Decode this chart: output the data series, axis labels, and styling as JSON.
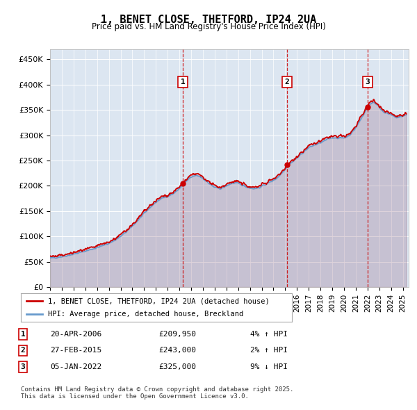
{
  "title": "1, BENET CLOSE, THETFORD, IP24 2UA",
  "subtitle": "Price paid vs. HM Land Registry's House Price Index (HPI)",
  "ylabel_ticks": [
    "£0",
    "£50K",
    "£100K",
    "£150K",
    "£200K",
    "£250K",
    "£300K",
    "£350K",
    "£400K",
    "£450K"
  ],
  "ytick_values": [
    0,
    50000,
    100000,
    150000,
    200000,
    250000,
    300000,
    350000,
    400000,
    450000
  ],
  "ylim": [
    0,
    470000
  ],
  "xlim_start": 1995.0,
  "xlim_end": 2025.5,
  "background_color": "#dce6f1",
  "plot_bg_color": "#dce6f1",
  "line_color_price": "#cc0000",
  "line_color_hpi": "#6699cc",
  "sale_marker_color": "#cc0000",
  "vline_color": "#cc0000",
  "annotation_box_color": "#cc0000",
  "sales": [
    {
      "label": "1",
      "date_x": 2006.3,
      "price": 209950,
      "text": "20-APR-2006",
      "amount": "£209,950",
      "pct": "4% ↑ HPI"
    },
    {
      "label": "2",
      "date_x": 2015.16,
      "price": 243000,
      "text": "27-FEB-2015",
      "amount": "£243,000",
      "pct": "2% ↑ HPI"
    },
    {
      "label": "3",
      "date_x": 2022.01,
      "price": 325000,
      "text": "05-JAN-2022",
      "amount": "£325,000",
      "pct": "9% ↓ HPI"
    }
  ],
  "legend_entries": [
    "1, BENET CLOSE, THETFORD, IP24 2UA (detached house)",
    "HPI: Average price, detached house, Breckland"
  ],
  "footer_text": "Contains HM Land Registry data © Crown copyright and database right 2025.\nThis data is licensed under the Open Government Licence v3.0.",
  "table_rows": [
    {
      "num": "1",
      "date": "20-APR-2006",
      "amount": "£209,950",
      "pct": "4% ↑ HPI"
    },
    {
      "num": "2",
      "date": "27-FEB-2015",
      "amount": "£243,000",
      "pct": "2% ↑ HPI"
    },
    {
      "num": "3",
      "date": "05-JAN-2022",
      "amount": "£325,000",
      "pct": "9% ↓ HPI"
    }
  ]
}
